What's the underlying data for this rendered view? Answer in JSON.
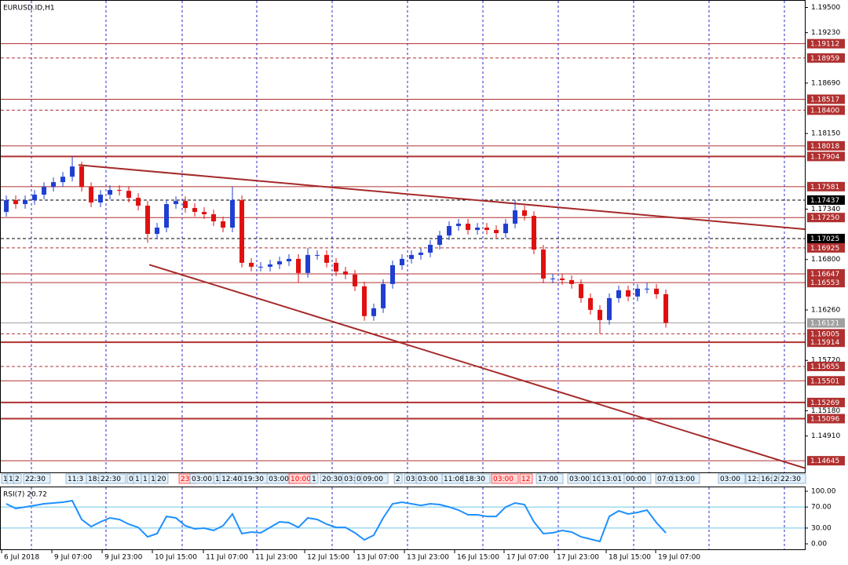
{
  "chart_data": [
    {
      "type": "candlestick",
      "title": "EURUSD.ID,H1",
      "up_color": "#1f3fd0",
      "down_color": "#e01010",
      "xlim": [
        -0.67,
        84.75
      ],
      "ylim": [
        1.1452,
        1.1958
      ],
      "yticks": [
        {
          "value": 1.195,
          "label": "1.19500"
        },
        {
          "value": 1.1923,
          "label": "1.19230"
        },
        {
          "value": 1.1869,
          "label": "1.18690"
        },
        {
          "value": 1.1815,
          "label": "1.18150"
        },
        {
          "value": 1.1734,
          "label": "1.17340"
        },
        {
          "value": 1.168,
          "label": "1.16800"
        },
        {
          "value": 1.1626,
          "label": "1.16260"
        },
        {
          "value": 1.1572,
          "label": "1.15720"
        },
        {
          "value": 1.1518,
          "label": "1.15180"
        },
        {
          "value": 1.1491,
          "label": "1.14910"
        }
      ],
      "xticks": [
        {
          "value": -0.5,
          "label": "6 Jul 2018"
        },
        {
          "value": 4.83,
          "label": "9 Jul 07:00"
        },
        {
          "value": 10.17,
          "label": "9 Jul 23:00"
        },
        {
          "value": 15.5,
          "label": "10 Jul 15:00"
        },
        {
          "value": 20.92,
          "label": "11 Jul 07:00"
        },
        {
          "value": 26.17,
          "label": "11 Jul 23:00"
        },
        {
          "value": 31.67,
          "label": "12 Jul 15:00"
        },
        {
          "value": 36.92,
          "label": "13 Jul 07:00"
        },
        {
          "value": 42.25,
          "label": "13 Jul 23:00"
        },
        {
          "value": 47.58,
          "label": "16 Jul 15:00"
        },
        {
          "value": 52.83,
          "label": "17 Jul 07:00"
        },
        {
          "value": 58.17,
          "label": "17 Jul 23:00"
        },
        {
          "value": 63.67,
          "label": "18 Jul 15:00"
        },
        {
          "value": 68.92,
          "label": "19 Jul 07:00"
        }
      ],
      "open": [
        1.1731,
        1.17436,
        1.17394,
        1.17436,
        1.17495,
        1.17578,
        1.17629,
        1.17687,
        1.17797,
        1.17578,
        1.17411,
        1.17495,
        1.17545,
        1.17536,
        1.17461,
        1.17377,
        1.17075,
        1.17142,
        1.17394,
        1.17427,
        1.17352,
        1.1731,
        1.17285,
        1.17209,
        1.17142,
        1.17436,
        1.16765,
        1.16723,
        1.16723,
        1.16748,
        1.16781,
        1.16807,
        1.16656,
        1.16849,
        1.16849,
        1.16765,
        1.16672,
        1.16639,
        1.16513,
        1.16194,
        1.16278,
        1.16538,
        1.16739,
        1.16807,
        1.16849,
        1.16874,
        1.16958,
        1.17058,
        1.17159,
        1.17184,
        1.17117,
        1.17142,
        1.17117,
        1.17083,
        1.17184,
        1.17327,
        1.17268,
        1.16907,
        1.16597,
        1.16597,
        1.1658,
        1.16538,
        1.16387,
        1.16261,
        1.16152,
        1.16387,
        1.16471,
        1.16404,
        1.16488,
        1.16488,
        1.16429
      ],
      "high": [
        1.17486,
        1.17486,
        1.17486,
        1.17545,
        1.17628,
        1.17679,
        1.17737,
        1.17904,
        1.17847,
        1.17628,
        1.17545,
        1.17595,
        1.17595,
        1.17586,
        1.17511,
        1.17427,
        1.17192,
        1.17444,
        1.17477,
        1.17477,
        1.17402,
        1.1736,
        1.17335,
        1.17259,
        1.17581,
        1.17486,
        1.16815,
        1.16773,
        1.16798,
        1.16831,
        1.16857,
        1.16857,
        1.16925,
        1.16899,
        1.16899,
        1.16815,
        1.16722,
        1.16689,
        1.16563,
        1.16328,
        1.16588,
        1.16789,
        1.16857,
        1.16899,
        1.16924,
        1.17008,
        1.17108,
        1.17209,
        1.17234,
        1.17234,
        1.17192,
        1.17192,
        1.17167,
        1.17234,
        1.17437,
        1.17377,
        1.17318,
        1.16957,
        1.16647,
        1.16647,
        1.1663,
        1.16588,
        1.16437,
        1.16311,
        1.16437,
        1.16521,
        1.16521,
        1.16538,
        1.16553,
        1.16538,
        1.16479
      ],
      "low": [
        1.1726,
        1.17344,
        1.17344,
        1.17386,
        1.17445,
        1.17528,
        1.17579,
        1.17637,
        1.17528,
        1.17361,
        1.17361,
        1.17445,
        1.17486,
        1.17411,
        1.17327,
        1.1698,
        1.17025,
        1.17092,
        1.17344,
        1.17302,
        1.1726,
        1.17235,
        1.17159,
        1.17092,
        1.17092,
        1.16715,
        1.16673,
        1.16673,
        1.16673,
        1.16698,
        1.16731,
        1.16553,
        1.16606,
        1.16799,
        1.16715,
        1.16622,
        1.16589,
        1.16463,
        1.16144,
        1.16144,
        1.16228,
        1.16488,
        1.16689,
        1.16757,
        1.16799,
        1.16824,
        1.16908,
        1.17008,
        1.17109,
        1.17067,
        1.17067,
        1.17067,
        1.17033,
        1.17033,
        1.17134,
        1.17218,
        1.16857,
        1.16547,
        1.16547,
        1.1653,
        1.16488,
        1.16337,
        1.16211,
        1.16005,
        1.16102,
        1.16337,
        1.16354,
        1.16354,
        1.16438,
        1.16379,
        1.16071
      ],
      "close": [
        1.17436,
        1.17394,
        1.17436,
        1.17495,
        1.17578,
        1.17629,
        1.17687,
        1.17797,
        1.17578,
        1.17411,
        1.17495,
        1.17545,
        1.17536,
        1.17461,
        1.17377,
        1.17075,
        1.17142,
        1.17394,
        1.17427,
        1.17352,
        1.1731,
        1.17285,
        1.17209,
        1.17142,
        1.17436,
        1.16765,
        1.16723,
        1.16723,
        1.16748,
        1.16781,
        1.16807,
        1.16656,
        1.16849,
        1.16849,
        1.16765,
        1.16672,
        1.16639,
        1.16513,
        1.16194,
        1.16278,
        1.16538,
        1.16739,
        1.16807,
        1.16849,
        1.16874,
        1.16958,
        1.17058,
        1.17159,
        1.17184,
        1.17117,
        1.17142,
        1.17117,
        1.17083,
        1.17184,
        1.17327,
        1.17268,
        1.16907,
        1.16597,
        1.16597,
        1.1658,
        1.16538,
        1.16387,
        1.16261,
        1.16152,
        1.16387,
        1.16471,
        1.16404,
        1.16488,
        1.16488,
        1.16429,
        1.16121
      ],
      "levels": [
        {
          "value": 1.19112,
          "style": "solid",
          "width": 1,
          "color": "#b03030"
        },
        {
          "value": 1.18959,
          "style": "dashed",
          "width": 1,
          "color": "#b03030"
        },
        {
          "value": 1.18517,
          "style": "solid",
          "width": 1,
          "color": "#b03030"
        },
        {
          "value": 1.184,
          "label": "1.18400",
          "style": "dashed",
          "width": 1,
          "color": "#b03030"
        },
        {
          "value": 1.18018,
          "style": "solid",
          "width": 1,
          "color": "#b03030"
        },
        {
          "value": 1.17904,
          "style": "solid",
          "width": 2,
          "color": "#b03030"
        },
        {
          "value": 1.17581,
          "style": "solid",
          "width": 1,
          "color": "#b03030"
        },
        {
          "value": 1.17437,
          "style": "dashed",
          "width": 1,
          "color": "#000000"
        },
        {
          "value": 1.1725,
          "label": "1.17250",
          "style": "solid",
          "width": 1,
          "color": "#b03030"
        },
        {
          "value": 1.17025,
          "style": "dashed",
          "width": 1,
          "color": "#000000"
        },
        {
          "value": 1.16925,
          "style": "dashed",
          "width": 1,
          "color": "#b03030"
        },
        {
          "value": 1.16647,
          "style": "solid",
          "width": 1,
          "color": "#b03030"
        },
        {
          "value": 1.16553,
          "style": "solid",
          "width": 1,
          "color": "#b03030"
        },
        {
          "value": 1.16121,
          "style": "solid",
          "width": 1,
          "color": "#a0a0a0"
        },
        {
          "value": 1.16005,
          "style": "dashed",
          "width": 1,
          "color": "#b03030"
        },
        {
          "value": 1.15914,
          "style": "solid",
          "width": 2,
          "color": "#b03030"
        },
        {
          "value": 1.15655,
          "style": "dashed",
          "width": 1,
          "color": "#b03030"
        },
        {
          "value": 1.15501,
          "style": "solid",
          "width": 1,
          "color": "#b03030"
        },
        {
          "value": 1.15269,
          "style": "solid",
          "width": 2,
          "color": "#b03030"
        },
        {
          "value": 1.15096,
          "style": "solid",
          "width": 2,
          "color": "#b03030"
        },
        {
          "value": 1.14645,
          "style": "solid",
          "width": 1,
          "color": "#b03030"
        }
      ],
      "trendlines": [
        {
          "x": [
            7.67,
            84.75
          ],
          "y": [
            1.17813,
            1.17125
          ],
          "color": "#a52a2a"
        },
        {
          "x": [
            15.17,
            84.75
          ],
          "y": [
            1.16745,
            1.14566
          ],
          "color": "#a52a2a"
        }
      ],
      "time_tags": [
        {
          "x": -0.5,
          "label": "1"
        },
        {
          "x": 0.08,
          "label": "17"
        },
        {
          "x": 0.75,
          "label": "2"
        },
        {
          "x": 1.83,
          "label": "22:30"
        },
        {
          "x": 6.33,
          "label": "11:3"
        },
        {
          "x": 8.5,
          "label": "18:"
        },
        {
          "x": 9.83,
          "label": "22:30"
        },
        {
          "x": 12.83,
          "label": "0"
        },
        {
          "x": 13.5,
          "label": "1"
        },
        {
          "x": 14.33,
          "label": "1"
        },
        {
          "x": 15.17,
          "label": "1"
        },
        {
          "x": 15.83,
          "label": "20"
        },
        {
          "x": 18.33,
          "label": "23:",
          "color": "#ff0000"
        },
        {
          "x": 19.5,
          "label": "03:00"
        },
        {
          "x": 22,
          "label": "1"
        },
        {
          "x": 22.67,
          "label": "12:40"
        },
        {
          "x": 25,
          "label": "19:30"
        },
        {
          "x": 27.67,
          "label": "03:00"
        },
        {
          "x": 30,
          "label": "10:00",
          "color": "#ff0000"
        },
        {
          "x": 32.25,
          "label": "1"
        },
        {
          "x": 33.33,
          "label": "20:30"
        },
        {
          "x": 35.67,
          "label": "03:"
        },
        {
          "x": 37,
          "label": "0"
        },
        {
          "x": 37.67,
          "label": "09:00"
        },
        {
          "x": 41.17,
          "label": "2"
        },
        {
          "x": 42.25,
          "label": "03:"
        },
        {
          "x": 43.5,
          "label": "03:00"
        },
        {
          "x": 46.25,
          "label": "11:08"
        },
        {
          "x": 48.5,
          "label": "18:30"
        },
        {
          "x": 51.5,
          "label": "03:00",
          "color": "#ff0000"
        },
        {
          "x": 54.5,
          "label": "12",
          "color": "#ff0000"
        },
        {
          "x": 56.25,
          "label": "17:00"
        },
        {
          "x": 59.58,
          "label": "03:00"
        },
        {
          "x": 62,
          "label": "10"
        },
        {
          "x": 63,
          "label": "13:01"
        },
        {
          "x": 65.58,
          "label": "00:00"
        },
        {
          "x": 68.92,
          "label": "07:0"
        },
        {
          "x": 70.75,
          "label": "13:00"
        },
        {
          "x": 75.58,
          "label": "03:00"
        },
        {
          "x": 78.5,
          "label": "12:"
        },
        {
          "x": 79.92,
          "label": "16:"
        },
        {
          "x": 81.25,
          "label": "20"
        },
        {
          "x": 82,
          "label": "22:30"
        }
      ]
    },
    {
      "type": "line",
      "title": "RSI(7) 20.72",
      "color": "#1e90ff",
      "ylim": [
        -10.4,
        107.5
      ],
      "yticks": [
        {
          "value": 100,
          "label": "100.00"
        },
        {
          "value": 70,
          "label": "70.00"
        },
        {
          "value": 30,
          "label": "30.00"
        },
        {
          "value": 0,
          "label": "0.00"
        }
      ],
      "levels": [
        70,
        30
      ],
      "values": [
        76.1,
        67.2,
        70.1,
        73.1,
        76.1,
        77.6,
        79.1,
        82.1,
        46.3,
        32.8,
        41.8,
        49.3,
        46.3,
        37.3,
        31.3,
        13.4,
        19.4,
        52.2,
        49.3,
        34.3,
        28.4,
        29.9,
        25.4,
        34.3,
        56.7,
        19.4,
        22.4,
        20.9,
        31.3,
        41.8,
        40.3,
        31.3,
        49.3,
        46.3,
        37.3,
        31.3,
        31.3,
        20.9,
        7.5,
        16.4,
        49.3,
        76.1,
        79.1,
        76.1,
        73.1,
        76.1,
        74.6,
        70.1,
        64.2,
        55.2,
        55.2,
        52.2,
        52.2,
        70.1,
        77.6,
        74.6,
        41.8,
        19.4,
        20.9,
        25.4,
        22.4,
        13.4,
        9.0,
        4.5,
        52.2,
        62.7,
        56.7,
        59.7,
        64.2,
        40.3,
        20.72
      ]
    }
  ]
}
